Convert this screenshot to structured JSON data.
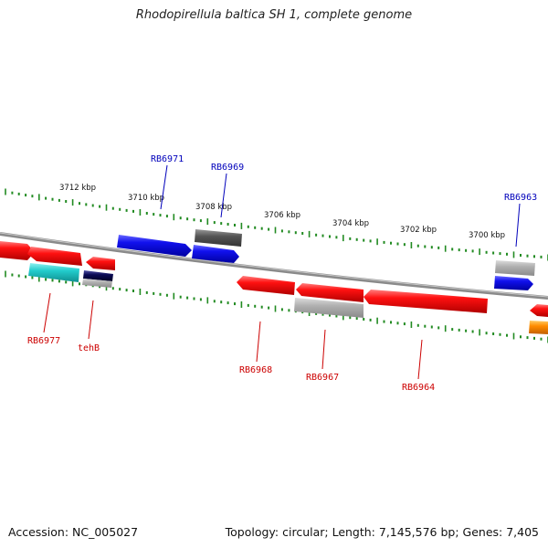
{
  "title": "Rhodopirellula baltica SH 1, complete genome",
  "footer": {
    "accession": "Accession: NC_005027",
    "summary": "Topology: circular; Length: 7,145,576 bp; Genes: 7,405"
  },
  "scale_labels": [
    "3712 kbp",
    "3710 kbp",
    "3708 kbp",
    "3706 kbp",
    "3704 kbp",
    "3702 kbp",
    "3700 kbp"
  ],
  "colors": {
    "backbone": "#888888",
    "ticks": "#228B22",
    "forward_label": "#0000bb",
    "reverse_label": "#cc0000",
    "red": "#ee1111",
    "blue": "#1111ee",
    "cyan": "#22cccc",
    "navy": "#0a0a55",
    "grey": "#aaaaaa",
    "dark_grey": "#555555",
    "orange": "#ff8c00"
  },
  "forward_labels": [
    "RB6971",
    "RB6969",
    "RB6963"
  ],
  "reverse_labels": [
    "RB6977",
    "tehB",
    "RB6968",
    "RB6967",
    "RB6964"
  ],
  "genes": [
    {
      "id": "g-red-left",
      "color": "red",
      "strand": "reverse"
    },
    {
      "id": "g-red-2",
      "color": "red",
      "strand": "reverse"
    },
    {
      "id": "g-red-3",
      "color": "red",
      "strand": "reverse"
    },
    {
      "id": "g-cyan",
      "color": "cyan",
      "strand": "reverse"
    },
    {
      "id": "g-navy",
      "color": "navy",
      "strand": "reverse"
    },
    {
      "id": "g-grey-small",
      "color": "grey",
      "strand": "reverse"
    },
    {
      "id": "g-blue-1",
      "color": "blue",
      "strand": "forward"
    },
    {
      "id": "g-darkgrey",
      "color": "dark_grey",
      "strand": "forward"
    },
    {
      "id": "g-blue-2",
      "color": "blue",
      "strand": "forward"
    },
    {
      "id": "g-red-4",
      "color": "red",
      "strand": "reverse"
    },
    {
      "id": "g-red-5",
      "color": "red",
      "strand": "reverse"
    },
    {
      "id": "g-grey-mid",
      "color": "grey",
      "strand": "reverse"
    },
    {
      "id": "g-red-6",
      "color": "red",
      "strand": "reverse"
    },
    {
      "id": "g-grey-right",
      "color": "grey",
      "strand": "forward"
    },
    {
      "id": "g-blue-3",
      "color": "blue",
      "strand": "forward"
    },
    {
      "id": "g-red-right",
      "color": "red",
      "strand": "reverse"
    },
    {
      "id": "g-orange",
      "color": "orange",
      "strand": "reverse"
    }
  ]
}
